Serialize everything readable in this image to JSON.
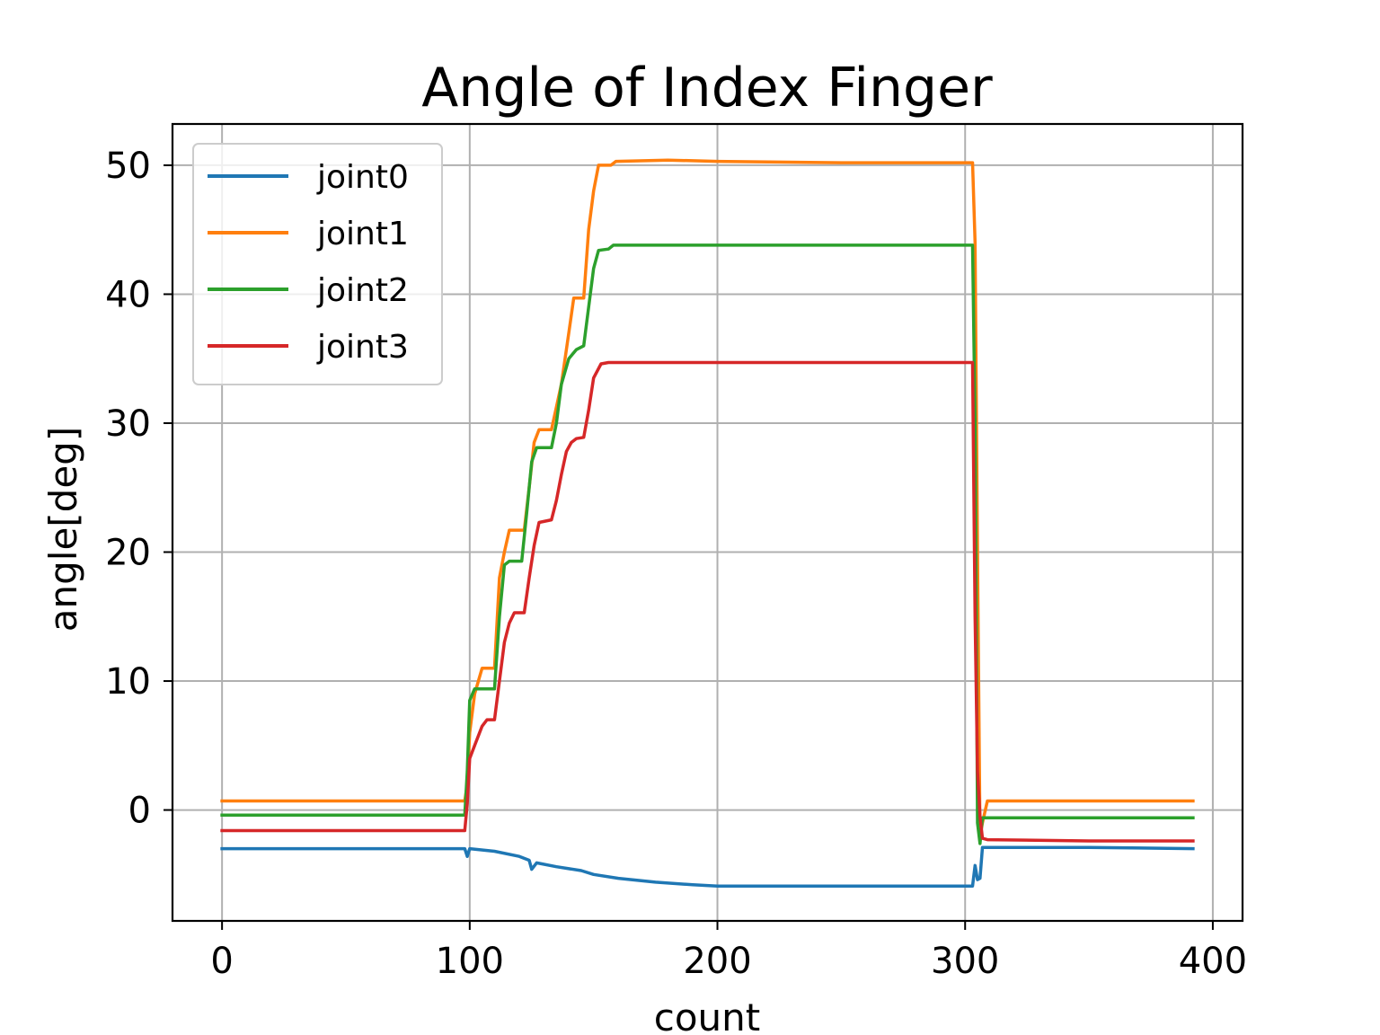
{
  "chart_data": {
    "type": "line",
    "title": "Angle of Index Finger",
    "xlabel": "count",
    "ylabel": "angle[deg]",
    "xlim": [
      -20,
      412
    ],
    "ylim": [
      -8.6,
      53.2
    ],
    "xticks": [
      0,
      100,
      200,
      300,
      400
    ],
    "yticks": [
      0,
      10,
      20,
      30,
      40,
      50
    ],
    "grid": true,
    "legend_position": "upper-left",
    "series": [
      {
        "name": "joint0",
        "color": "#1f77b4",
        "points": [
          [
            0,
            -3.0
          ],
          [
            98,
            -3.0
          ],
          [
            99,
            -3.6
          ],
          [
            100,
            -3.0
          ],
          [
            110,
            -3.2
          ],
          [
            120,
            -3.6
          ],
          [
            124,
            -3.9
          ],
          [
            125,
            -4.6
          ],
          [
            127,
            -4.1
          ],
          [
            135,
            -4.4
          ],
          [
            145,
            -4.7
          ],
          [
            150,
            -5.0
          ],
          [
            160,
            -5.3
          ],
          [
            175,
            -5.6
          ],
          [
            190,
            -5.8
          ],
          [
            200,
            -5.9
          ],
          [
            220,
            -5.9
          ],
          [
            260,
            -5.9
          ],
          [
            300,
            -5.9
          ],
          [
            303,
            -5.9
          ],
          [
            304,
            -4.3
          ],
          [
            305,
            -5.4
          ],
          [
            306,
            -5.3
          ],
          [
            307,
            -2.9
          ],
          [
            310,
            -2.9
          ],
          [
            350,
            -2.9
          ],
          [
            392,
            -3.0
          ]
        ]
      },
      {
        "name": "joint1",
        "color": "#ff7f0e",
        "points": [
          [
            0,
            0.7
          ],
          [
            98,
            0.7
          ],
          [
            99,
            2.0
          ],
          [
            100,
            6.0
          ],
          [
            102,
            9.0
          ],
          [
            105,
            11.0
          ],
          [
            110,
            11.0
          ],
          [
            112,
            18.0
          ],
          [
            114,
            20.0
          ],
          [
            116,
            21.7
          ],
          [
            122,
            21.7
          ],
          [
            124,
            25.0
          ],
          [
            126,
            28.5
          ],
          [
            128,
            29.5
          ],
          [
            133,
            29.5
          ],
          [
            137,
            33.0
          ],
          [
            140,
            37.0
          ],
          [
            142,
            39.7
          ],
          [
            146,
            39.7
          ],
          [
            148,
            45.0
          ],
          [
            150,
            48.0
          ],
          [
            152,
            50.0
          ],
          [
            157,
            50.0
          ],
          [
            159,
            50.3
          ],
          [
            180,
            50.4
          ],
          [
            200,
            50.3
          ],
          [
            250,
            50.2
          ],
          [
            303,
            50.2
          ],
          [
            304,
            44.0
          ],
          [
            305,
            20.0
          ],
          [
            306,
            -2.0
          ],
          [
            307,
            -1.0
          ],
          [
            309,
            0.7
          ],
          [
            350,
            0.7
          ],
          [
            392,
            0.7
          ]
        ]
      },
      {
        "name": "joint2",
        "color": "#2ca02c",
        "points": [
          [
            0,
            -0.4
          ],
          [
            98,
            -0.4
          ],
          [
            99,
            3.0
          ],
          [
            100,
            8.5
          ],
          [
            102,
            9.4
          ],
          [
            110,
            9.4
          ],
          [
            112,
            15.0
          ],
          [
            114,
            19.0
          ],
          [
            116,
            19.3
          ],
          [
            121,
            19.3
          ],
          [
            123,
            23.0
          ],
          [
            125,
            27.0
          ],
          [
            127,
            28.1
          ],
          [
            133,
            28.1
          ],
          [
            135,
            30.0
          ],
          [
            137,
            33.0
          ],
          [
            140,
            35.0
          ],
          [
            143,
            35.7
          ],
          [
            146,
            36.0
          ],
          [
            148,
            39.0
          ],
          [
            150,
            42.0
          ],
          [
            152,
            43.4
          ],
          [
            156,
            43.5
          ],
          [
            158,
            43.8
          ],
          [
            200,
            43.8
          ],
          [
            303,
            43.8
          ],
          [
            304,
            30.0
          ],
          [
            305,
            -1.0
          ],
          [
            306,
            -2.6
          ],
          [
            307,
            -0.6
          ],
          [
            320,
            -0.6
          ],
          [
            392,
            -0.6
          ]
        ]
      },
      {
        "name": "joint3",
        "color": "#d62728",
        "points": [
          [
            0,
            -1.6
          ],
          [
            98,
            -1.6
          ],
          [
            99,
            0.5
          ],
          [
            100,
            4.0
          ],
          [
            102,
            5.0
          ],
          [
            105,
            6.5
          ],
          [
            107,
            7.0
          ],
          [
            110,
            7.0
          ],
          [
            112,
            10.0
          ],
          [
            114,
            13.0
          ],
          [
            116,
            14.5
          ],
          [
            118,
            15.3
          ],
          [
            122,
            15.3
          ],
          [
            124,
            18.0
          ],
          [
            126,
            20.5
          ],
          [
            128,
            22.3
          ],
          [
            133,
            22.5
          ],
          [
            135,
            24.0
          ],
          [
            137,
            26.0
          ],
          [
            139,
            27.8
          ],
          [
            141,
            28.5
          ],
          [
            143,
            28.8
          ],
          [
            146,
            28.9
          ],
          [
            148,
            31.0
          ],
          [
            150,
            33.5
          ],
          [
            153,
            34.6
          ],
          [
            156,
            34.7
          ],
          [
            200,
            34.7
          ],
          [
            250,
            34.7
          ],
          [
            303,
            34.7
          ],
          [
            304,
            15.0
          ],
          [
            305,
            3.0
          ],
          [
            306,
            -0.5
          ],
          [
            307,
            -2.2
          ],
          [
            309,
            -2.3
          ],
          [
            350,
            -2.4
          ],
          [
            392,
            -2.4
          ]
        ]
      }
    ]
  }
}
